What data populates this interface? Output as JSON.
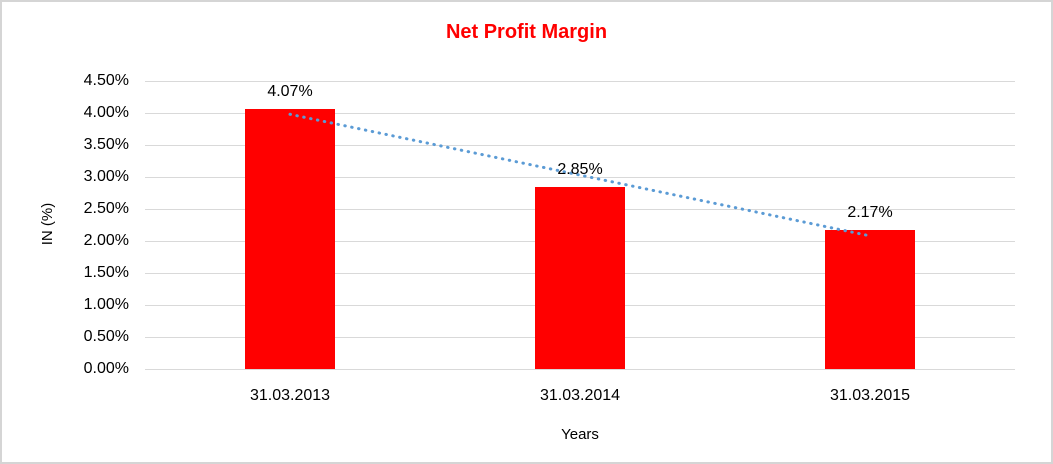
{
  "chart_data": {
    "type": "bar",
    "title": "Net Profit Margin",
    "xlabel": "Years",
    "ylabel": "IN (%)",
    "categories": [
      "31.03.2013",
      "31.03.2014",
      "31.03.2015"
    ],
    "values": [
      4.07,
      2.85,
      2.17
    ],
    "value_labels": [
      "4.07%",
      "2.85%",
      "2.17%"
    ],
    "ylim": [
      0,
      4.5
    ],
    "ytick_step": 0.5,
    "ytick_labels": [
      "0.00%",
      "0.50%",
      "1.00%",
      "1.50%",
      "2.00%",
      "2.50%",
      "3.00%",
      "3.50%",
      "4.00%",
      "4.50%"
    ],
    "grid": true,
    "legend": "none",
    "trendline": {
      "type": "linear",
      "style": "dotted"
    },
    "colors": {
      "bar_fill": "#FF0000",
      "title_text": "#FF0000",
      "gridline": "#D9D9D9",
      "axis_text": "#000000",
      "trendline": "#5B9BD5",
      "frame_border": "#D5D5D5"
    }
  }
}
